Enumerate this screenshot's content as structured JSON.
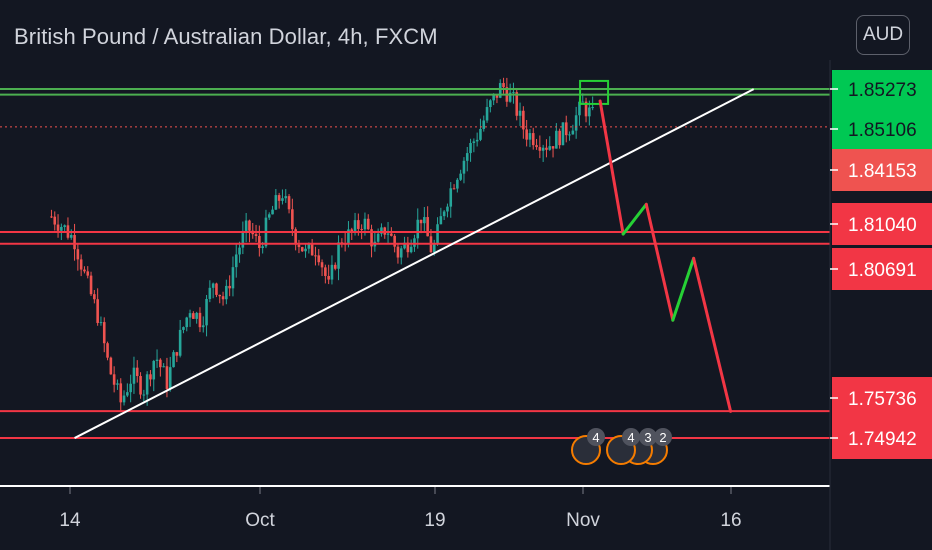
{
  "header": {
    "title": "British Pound / Australian Dollar, 4h, FXCM",
    "currency": "AUD"
  },
  "colors": {
    "background": "#131722",
    "green_line": "#4caf50",
    "red_line": "#f23645",
    "trend_line": "#ffffff",
    "candle_up": "#26a69a",
    "candle_down": "#ef5350",
    "label_green": "#00c853",
    "label_red": "#f23645",
    "label_current": "#ef5350",
    "projection_down": "#f23645",
    "projection_up": "#26d135"
  },
  "chart_data": {
    "type": "candlestick",
    "title": "British Pound / Australian Dollar, 4h, FXCM",
    "x_ticks": [
      "14",
      "Oct",
      "19",
      "Nov",
      "16"
    ],
    "ylim": [
      1.738,
      1.857
    ],
    "grid": false,
    "price_labels": [
      {
        "value": "1.85273",
        "price": 1.85273,
        "kind": "green_line"
      },
      {
        "value": "1.85106",
        "price": 1.85106,
        "kind": "green_line"
      },
      {
        "value": "1.84153",
        "price": 1.84153,
        "kind": "current"
      },
      {
        "value": "1.81040",
        "price": 1.8104,
        "kind": "red_line"
      },
      {
        "value": "1.80691",
        "price": 1.80691,
        "kind": "red_line"
      },
      {
        "value": "1.75736",
        "price": 1.75736,
        "kind": "red_line"
      },
      {
        "value": "1.74942",
        "price": 1.74942,
        "kind": "red_line"
      }
    ],
    "horizontal_lines": [
      {
        "price": 1.85273,
        "color": "green"
      },
      {
        "price": 1.85106,
        "color": "green"
      },
      {
        "price": 1.8104,
        "color": "red"
      },
      {
        "price": 1.80691,
        "color": "red"
      },
      {
        "price": 1.75736,
        "color": "red"
      },
      {
        "price": 1.74942,
        "color": "red"
      }
    ],
    "current_price_dotted": 1.84153,
    "trend_line": {
      "from": [
        1,
        1.7494
      ],
      "to": [
        59.8,
        1.8527
      ]
    },
    "price_path": [
      [
        -1,
        1.815
      ],
      [
        0,
        1.812
      ],
      [
        1,
        1.808
      ],
      [
        2,
        1.796
      ],
      [
        3,
        1.786
      ],
      [
        4,
        1.77
      ],
      [
        5,
        1.76
      ],
      [
        6,
        1.768
      ],
      [
        7,
        1.764
      ],
      [
        8,
        1.774
      ],
      [
        9,
        1.766
      ],
      [
        10,
        1.778
      ],
      [
        11,
        1.788
      ],
      [
        12,
        1.784
      ],
      [
        13,
        1.796
      ],
      [
        14,
        1.79
      ],
      [
        15,
        1.804
      ],
      [
        16,
        1.812
      ],
      [
        17,
        1.806
      ],
      [
        18,
        1.816
      ],
      [
        19,
        1.822
      ],
      [
        20,
        1.81
      ],
      [
        21,
        1.804
      ],
      [
        22,
        1.806
      ],
      [
        23,
        1.794
      ],
      [
        24,
        1.808
      ],
      [
        25,
        1.81
      ],
      [
        26,
        1.814
      ],
      [
        27,
        1.806
      ],
      [
        28,
        1.812
      ],
      [
        29,
        1.804
      ],
      [
        30,
        1.808
      ],
      [
        31,
        1.815
      ],
      [
        32,
        1.804
      ],
      [
        33,
        1.818
      ],
      [
        34,
        1.827
      ],
      [
        35,
        1.834
      ],
      [
        36,
        1.84
      ],
      [
        37,
        1.848
      ],
      [
        38,
        1.854
      ],
      [
        39,
        1.849
      ],
      [
        40,
        1.84
      ],
      [
        41,
        1.838
      ],
      [
        42,
        1.836
      ],
      [
        43,
        1.839
      ],
      [
        44,
        1.842
      ],
      [
        45,
        1.848
      ],
      [
        46,
        1.844
      ]
    ],
    "projection": [
      [
        46.5,
        1.8492
      ],
      [
        48.5,
        1.8098
      ],
      [
        50.5,
        1.8186
      ],
      [
        52.8,
        1.7843
      ],
      [
        54.6,
        1.8026
      ],
      [
        57.8,
        1.7573
      ]
    ],
    "event_badges": [
      "4",
      "4",
      "3",
      "2"
    ]
  }
}
